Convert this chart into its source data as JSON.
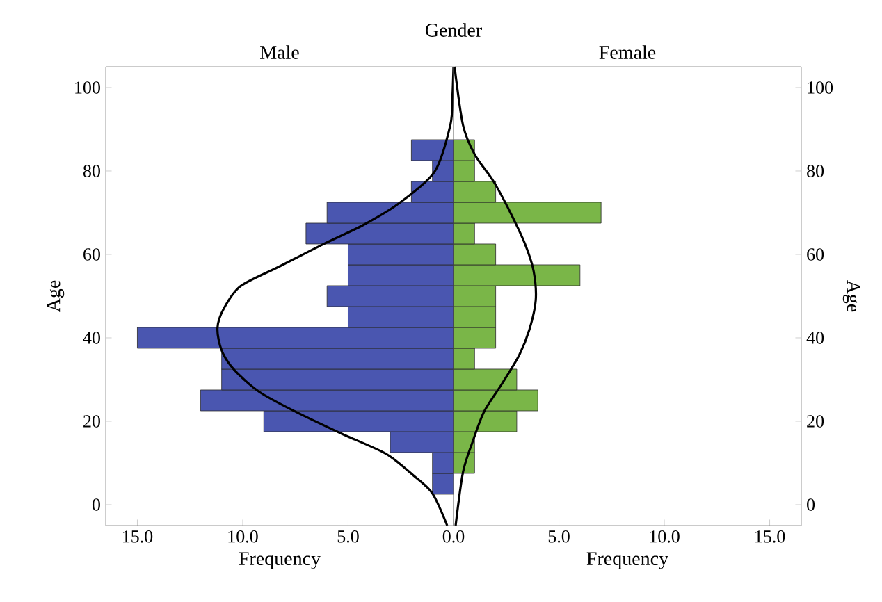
{
  "chart_data": [
    {
      "type": "bar",
      "orientation": "horizontal",
      "title": "Male",
      "xlabel": "Frequency",
      "ylabel": "Age",
      "annotations": [
        "Gender"
      ],
      "xlim": [
        16.5,
        0
      ],
      "xticks": [
        {
          "value": 15,
          "label": "15.0"
        },
        {
          "value": 10,
          "label": "10.0"
        },
        {
          "value": 5,
          "label": "5.0"
        },
        {
          "value": 0,
          "label": "0.0"
        }
      ],
      "ylim": [
        -5,
        105
      ],
      "yticks": [
        0,
        20,
        40,
        60,
        80,
        100
      ],
      "series": [
        {
          "color": "#4a56b0",
          "x": [
            5,
            10,
            15,
            20,
            25,
            30,
            35,
            40,
            45,
            50,
            55,
            60,
            65,
            70,
            75,
            80,
            85
          ],
          "values": [
            1,
            1,
            3,
            9,
            12,
            11,
            11,
            15,
            5,
            6,
            5,
            5,
            7,
            6,
            2,
            1,
            2
          ]
        },
        {
          "type": "line",
          "color": "#000000",
          "marker": "none",
          "x": [
            -5,
            2.7,
            7,
            12.2,
            17,
            22.3,
            27,
            32.3,
            37,
            42.3,
            47,
            52.4,
            57,
            62.4,
            67,
            72.2,
            79.8,
            91,
            98,
            105
          ],
          "values": [
            0.3,
            1.0,
            1.9,
            3.2,
            5.3,
            7.5,
            9.2,
            10.4,
            11.0,
            11.2,
            10.9,
            10.1,
            8.3,
            6.2,
            4.3,
            2.6,
            0.9,
            0.15,
            0.05,
            0
          ]
        }
      ]
    },
    {
      "type": "bar",
      "orientation": "horizontal",
      "title": "Female",
      "xlabel": "Frequency",
      "ylabel": "Age",
      "xlim": [
        0,
        16.5
      ],
      "xticks": [
        {
          "value": 0,
          "label": null
        },
        {
          "value": 5,
          "label": "5.0"
        },
        {
          "value": 10,
          "label": "10.0"
        },
        {
          "value": 15,
          "label": "15.0"
        }
      ],
      "ylim": [
        -5,
        105
      ],
      "yticks": [
        0,
        20,
        40,
        60,
        80,
        100
      ],
      "series": [
        {
          "color": "#7ab648",
          "x": [
            5,
            10,
            15,
            20,
            25,
            30,
            35,
            40,
            45,
            50,
            55,
            60,
            65,
            70,
            75,
            80,
            85
          ],
          "values": [
            0,
            1,
            1,
            3,
            4,
            3,
            1,
            2,
            2,
            2,
            6,
            2,
            1,
            7,
            2,
            1,
            1
          ]
        },
        {
          "type": "line",
          "color": "#000000",
          "marker": "none",
          "x": [
            -5,
            7.8,
            15,
            22.3,
            29,
            35.7,
            42,
            49,
            56,
            62.4,
            70,
            77.5,
            84,
            91,
            105
          ],
          "values": [
            0.1,
            0.45,
            0.9,
            1.45,
            2.3,
            3.1,
            3.6,
            3.9,
            3.8,
            3.4,
            2.7,
            1.9,
            1.0,
            0.45,
            0.05
          ]
        }
      ]
    }
  ]
}
